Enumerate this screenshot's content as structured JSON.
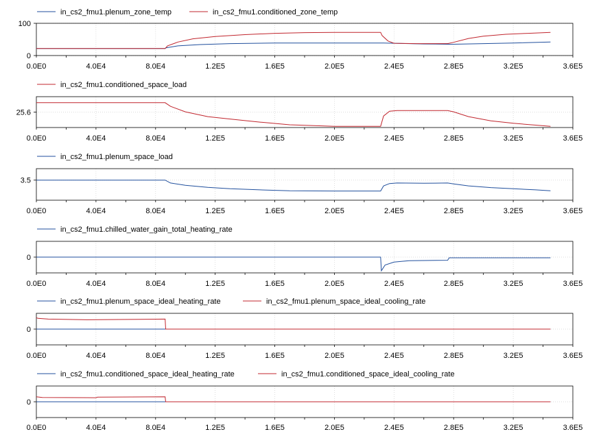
{
  "colors": {
    "blue": "#1f4e9c",
    "red": "#c0242c",
    "grid": "#d0d0d0",
    "axis": "#000000"
  },
  "chart_data": [
    {
      "type": "line",
      "xlim": [
        0,
        360000
      ],
      "ylim": [
        0,
        100
      ],
      "x_ticks": [
        "0.0E0",
        "4.0E4",
        "8.0E4",
        "1.2E5",
        "1.6E5",
        "2.0E5",
        "2.4E5",
        "2.8E5",
        "3.2E5",
        "3.6E5"
      ],
      "y_ticks": [
        {
          "v": 0,
          "label": "0"
        },
        {
          "v": 100,
          "label": "100"
        }
      ],
      "series": [
        {
          "name": "in_cs2_fmu1.plenum_zone_temp",
          "color": "#1f4e9c",
          "points": [
            [
              0,
              22
            ],
            [
              86400,
              22
            ],
            [
              87000,
              24
            ],
            [
              95000,
              30
            ],
            [
              110000,
              34
            ],
            [
              130000,
              37
            ],
            [
              160000,
              39
            ],
            [
              200000,
              39
            ],
            [
              231000,
              39
            ],
            [
              233000,
              39
            ],
            [
              240000,
              38
            ],
            [
              260000,
              36
            ],
            [
              276000,
              35
            ],
            [
              280000,
              35
            ],
            [
              300000,
              37
            ],
            [
              320000,
              39
            ],
            [
              345000,
              42
            ]
          ]
        },
        {
          "name": "in_cs2_fmu1.conditioned_zone_temp",
          "color": "#c0242c",
          "points": [
            [
              0,
              22
            ],
            [
              86400,
              22
            ],
            [
              88000,
              30
            ],
            [
              95000,
              42
            ],
            [
              105000,
              52
            ],
            [
              120000,
              59
            ],
            [
              140000,
              65
            ],
            [
              160000,
              69
            ],
            [
              180000,
              71
            ],
            [
              200000,
              72
            ],
            [
              231000,
              72
            ],
            [
              232000,
              62
            ],
            [
              236000,
              45
            ],
            [
              240000,
              38
            ],
            [
              255000,
              37
            ],
            [
              270000,
              37
            ],
            [
              276000,
              37
            ],
            [
              280000,
              41
            ],
            [
              290000,
              53
            ],
            [
              300000,
              60
            ],
            [
              315000,
              66
            ],
            [
              330000,
              69
            ],
            [
              345000,
              72
            ]
          ]
        }
      ]
    },
    {
      "type": "line",
      "xlim": [
        0,
        360000
      ],
      "ylim": [
        0,
        51
      ],
      "x_ticks": [
        "0.0E0",
        "4.0E4",
        "8.0E4",
        "1.2E5",
        "1.6E5",
        "2.0E5",
        "2.4E5",
        "2.8E5",
        "3.2E5",
        "3.6E5"
      ],
      "y_ticks": [
        {
          "v": 25.6,
          "label": "25.6"
        }
      ],
      "series": [
        {
          "name": "in_cs2_fmu1.conditioned_space_load",
          "color": "#c0242c",
          "points": [
            [
              0,
              41
            ],
            [
              86400,
              41
            ],
            [
              90000,
              35
            ],
            [
              100000,
              26
            ],
            [
              115000,
              18
            ],
            [
              130000,
              14
            ],
            [
              150000,
              9
            ],
            [
              170000,
              4.5
            ],
            [
              200000,
              2
            ],
            [
              231000,
              2
            ],
            [
              233000,
              19
            ],
            [
              237000,
              27
            ],
            [
              242000,
              28
            ],
            [
              260000,
              28
            ],
            [
              276000,
              28
            ],
            [
              280000,
              26
            ],
            [
              290000,
              18
            ],
            [
              305000,
              11
            ],
            [
              320000,
              7
            ],
            [
              335000,
              4
            ],
            [
              345000,
              2
            ]
          ]
        }
      ]
    },
    {
      "type": "line",
      "xlim": [
        0,
        360000
      ],
      "ylim": [
        0,
        5.5
      ],
      "x_ticks": [
        "0.0E0",
        "4.0E4",
        "8.0E4",
        "1.2E5",
        "1.6E5",
        "2.0E5",
        "2.4E5",
        "2.8E5",
        "3.2E5",
        "3.6E5"
      ],
      "y_ticks": [
        {
          "v": 3.5,
          "label": "3.5"
        }
      ],
      "series": [
        {
          "name": "in_cs2_fmu1.plenum_space_load",
          "color": "#1f4e9c",
          "points": [
            [
              0,
              3.5
            ],
            [
              86400,
              3.5
            ],
            [
              90000,
              3.0
            ],
            [
              100000,
              2.6
            ],
            [
              115000,
              2.25
            ],
            [
              130000,
              2.0
            ],
            [
              150000,
              1.8
            ],
            [
              170000,
              1.65
            ],
            [
              200000,
              1.6
            ],
            [
              231000,
              1.6
            ],
            [
              233000,
              2.5
            ],
            [
              237000,
              2.9
            ],
            [
              242000,
              3.0
            ],
            [
              260000,
              2.95
            ],
            [
              276000,
              3.0
            ],
            [
              280000,
              2.85
            ],
            [
              290000,
              2.5
            ],
            [
              305000,
              2.2
            ],
            [
              320000,
              2.0
            ],
            [
              335000,
              1.8
            ],
            [
              345000,
              1.65
            ]
          ]
        }
      ]
    },
    {
      "type": "line",
      "xlim": [
        0,
        360000
      ],
      "ylim": [
        -1.1,
        1.1
      ],
      "x_ticks": [
        "0.0E0",
        "4.0E4",
        "8.0E4",
        "1.2E5",
        "1.6E5",
        "2.0E5",
        "2.4E5",
        "2.8E5",
        "3.2E5",
        "3.6E5"
      ],
      "y_ticks": [
        {
          "v": 0,
          "label": "0"
        }
      ],
      "series": [
        {
          "name": "in_cs2_fmu1.chilled_water_gain_total_heating_rate",
          "color": "#1f4e9c",
          "points": [
            [
              0,
              0
            ],
            [
              231000,
              0
            ],
            [
              231500,
              -0.95
            ],
            [
              234000,
              -0.55
            ],
            [
              240000,
              -0.35
            ],
            [
              250000,
              -0.25
            ],
            [
              276000,
              -0.22
            ],
            [
              277000,
              -0.05
            ],
            [
              345000,
              -0.05
            ]
          ]
        }
      ]
    },
    {
      "type": "line",
      "xlim": [
        0,
        360000
      ],
      "ylim": [
        -1.1,
        1.1
      ],
      "x_ticks": [
        "0.0E0",
        "4.0E4",
        "8.0E4",
        "1.2E5",
        "1.6E5",
        "2.0E5",
        "2.4E5",
        "2.8E5",
        "3.2E5",
        "3.6E5"
      ],
      "y_ticks": [
        {
          "v": 0,
          "label": "0"
        }
      ],
      "series": [
        {
          "name": "in_cs2_fmu1.plenum_space_ideal_heating_rate",
          "color": "#1f4e9c",
          "points": [
            [
              0,
              0
            ],
            [
              345000,
              0
            ]
          ]
        },
        {
          "name": "in_cs2_fmu1.plenum_space_ideal_cooling_rate",
          "color": "#c0242c",
          "points": [
            [
              0,
              0.8
            ],
            [
              1000,
              0.75
            ],
            [
              8000,
              0.7
            ],
            [
              34000,
              0.65
            ],
            [
              70000,
              0.68
            ],
            [
              86400,
              0.7
            ],
            [
              86800,
              0
            ],
            [
              345000,
              0
            ]
          ]
        }
      ]
    },
    {
      "type": "line",
      "xlim": [
        0,
        360000
      ],
      "ylim": [
        -1.1,
        1.1
      ],
      "x_ticks": [
        "0.0E0",
        "4.0E4",
        "8.0E4",
        "1.2E5",
        "1.6E5",
        "2.0E5",
        "2.4E5",
        "2.8E5",
        "3.2E5",
        "3.6E5"
      ],
      "y_ticks": [
        {
          "v": 0,
          "label": "0"
        }
      ],
      "series": [
        {
          "name": "in_cs2_fmu1.conditioned_space_ideal_heating_rate",
          "color": "#1f4e9c",
          "points": [
            [
              0,
              0
            ],
            [
              345000,
              0
            ]
          ]
        },
        {
          "name": "in_cs2_fmu1.conditioned_space_ideal_cooling_rate",
          "color": "#c0242c",
          "points": [
            [
              0,
              0.35
            ],
            [
              4000,
              0.3
            ],
            [
              40000,
              0.28
            ],
            [
              41000,
              0.32
            ],
            [
              86400,
              0.35
            ],
            [
              86800,
              0
            ],
            [
              345000,
              0
            ]
          ]
        }
      ]
    }
  ]
}
